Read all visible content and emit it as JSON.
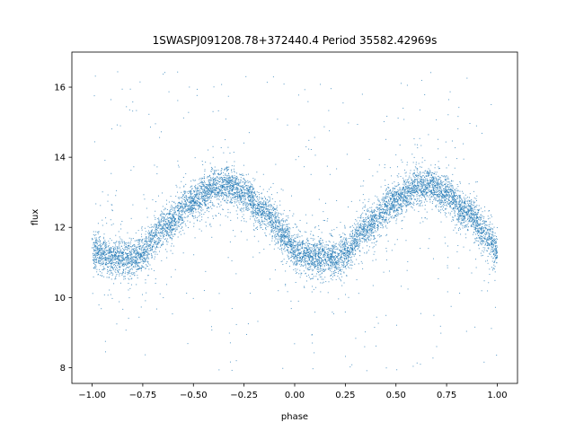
{
  "chart_data": {
    "type": "scatter",
    "title": "1SWASPJ091208.78+372440.4 Period 35582.42969s",
    "xlabel": "phase",
    "ylabel": "flux",
    "xlim": [
      -1.1,
      1.1
    ],
    "ylim": [
      7.55,
      17.0
    ],
    "xticks": [
      -1.0,
      -0.75,
      -0.5,
      -0.25,
      0.0,
      0.25,
      0.5,
      0.75,
      1.0
    ],
    "xtick_labels": [
      "−1.00",
      "−0.75",
      "−0.50",
      "−0.25",
      "0.00",
      "0.25",
      "0.50",
      "0.75",
      "1.00"
    ],
    "yticks": [
      8,
      10,
      12,
      14,
      16
    ],
    "ytick_labels": [
      "8",
      "10",
      "12",
      "14",
      "16"
    ],
    "grid": false,
    "marker_color": "#1f77b4",
    "model": {
      "description_phase_range": [
        -1.0,
        1.0
      ],
      "curve": [
        {
          "phase": -1.0,
          "flux": 11.3
        },
        {
          "phase": -0.9,
          "flux": 11.15
        },
        {
          "phase": -0.8,
          "flux": 11.1
        },
        {
          "phase": -0.75,
          "flux": 11.3
        },
        {
          "phase": -0.65,
          "flux": 12.0
        },
        {
          "phase": -0.5,
          "flux": 12.75
        },
        {
          "phase": -0.4,
          "flux": 13.15
        },
        {
          "phase": -0.33,
          "flux": 13.2
        },
        {
          "phase": -0.25,
          "flux": 12.95
        },
        {
          "phase": -0.15,
          "flux": 12.45
        },
        {
          "phase": -0.05,
          "flux": 11.8
        },
        {
          "phase": 0.0,
          "flux": 11.3
        },
        {
          "phase": 0.1,
          "flux": 11.15
        },
        {
          "phase": 0.2,
          "flux": 11.1
        },
        {
          "phase": 0.25,
          "flux": 11.3
        },
        {
          "phase": 0.35,
          "flux": 12.0
        },
        {
          "phase": 0.5,
          "flux": 12.75
        },
        {
          "phase": 0.6,
          "flux": 13.15
        },
        {
          "phase": 0.67,
          "flux": 13.2
        },
        {
          "phase": 0.75,
          "flux": 12.95
        },
        {
          "phase": 0.85,
          "flux": 12.45
        },
        {
          "phase": 0.95,
          "flux": 11.8
        },
        {
          "phase": 1.0,
          "flux": 11.3
        }
      ],
      "scatter_spread": 0.25,
      "point_count": 9000,
      "outlier_range": [
        7.9,
        16.6
      ]
    }
  }
}
